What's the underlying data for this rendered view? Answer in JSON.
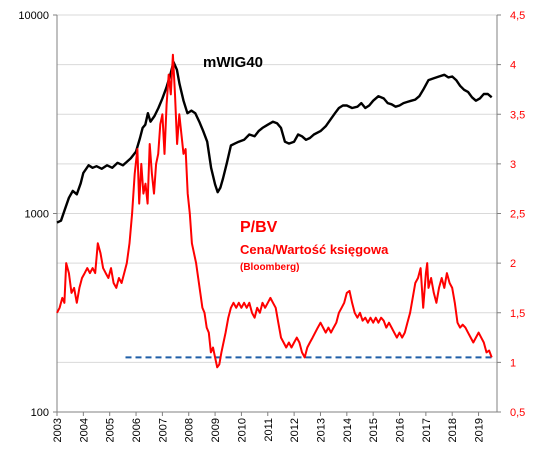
{
  "chart_data": {
    "type": "line",
    "x_ticks": [
      "2003",
      "2004",
      "2005",
      "2006",
      "2007",
      "2008",
      "2009",
      "2010",
      "2011",
      "2012",
      "2013",
      "2014",
      "2015",
      "2016",
      "2017",
      "2018",
      "2019"
    ],
    "y_left": {
      "scale": "log",
      "range": [
        100,
        10000
      ],
      "ticks": [
        "10000",
        "1000",
        "100"
      ]
    },
    "y_right": {
      "range": [
        0.5,
        4.5
      ],
      "ticks": [
        "4,5",
        "4",
        "3,5",
        "3",
        "2,5",
        "2",
        "1,5",
        "1",
        "0,5"
      ]
    },
    "annotations": {
      "mwig": "mWIG40",
      "pbv": "P/BV",
      "cena": "Cena/Wartość księgowa",
      "bloomberg": "(Bloomberg)"
    },
    "colors": {
      "mwig": "#000000",
      "pbv": "#ff0000",
      "reference": "#1f5fa8",
      "grid": "#d9d9d9"
    },
    "reference_line": {
      "value": 1.05,
      "x_start": 2005.6,
      "x_end": 2019.5,
      "style": "dashed"
    },
    "series": [
      {
        "name": "mWIG40",
        "axis": "left",
        "points": [
          [
            2003.0,
            900
          ],
          [
            2003.15,
            920
          ],
          [
            2003.3,
            1050
          ],
          [
            2003.45,
            1200
          ],
          [
            2003.6,
            1300
          ],
          [
            2003.75,
            1250
          ],
          [
            2003.9,
            1420
          ],
          [
            2004.0,
            1600
          ],
          [
            2004.2,
            1750
          ],
          [
            2004.35,
            1700
          ],
          [
            2004.5,
            1730
          ],
          [
            2004.7,
            1680
          ],
          [
            2004.9,
            1750
          ],
          [
            2005.1,
            1700
          ],
          [
            2005.3,
            1800
          ],
          [
            2005.5,
            1750
          ],
          [
            2005.65,
            1820
          ],
          [
            2005.8,
            1900
          ],
          [
            2006.0,
            2050
          ],
          [
            2006.15,
            2400
          ],
          [
            2006.25,
            2700
          ],
          [
            2006.35,
            2800
          ],
          [
            2006.45,
            3200
          ],
          [
            2006.55,
            2900
          ],
          [
            2006.7,
            3100
          ],
          [
            2006.85,
            3400
          ],
          [
            2007.0,
            3800
          ],
          [
            2007.15,
            4300
          ],
          [
            2007.3,
            5000
          ],
          [
            2007.42,
            5800
          ],
          [
            2007.55,
            5300
          ],
          [
            2007.65,
            4500
          ],
          [
            2007.8,
            3700
          ],
          [
            2007.95,
            3200
          ],
          [
            2008.1,
            3300
          ],
          [
            2008.25,
            3200
          ],
          [
            2008.4,
            2900
          ],
          [
            2008.55,
            2600
          ],
          [
            2008.7,
            2300
          ],
          [
            2008.85,
            1700
          ],
          [
            2009.0,
            1400
          ],
          [
            2009.1,
            1280
          ],
          [
            2009.2,
            1350
          ],
          [
            2009.3,
            1500
          ],
          [
            2009.45,
            1800
          ],
          [
            2009.6,
            2200
          ],
          [
            2009.75,
            2250
          ],
          [
            2009.9,
            2300
          ],
          [
            2010.1,
            2350
          ],
          [
            2010.3,
            2500
          ],
          [
            2010.5,
            2450
          ],
          [
            2010.65,
            2600
          ],
          [
            2010.8,
            2700
          ],
          [
            2011.0,
            2800
          ],
          [
            2011.2,
            2900
          ],
          [
            2011.35,
            2850
          ],
          [
            2011.5,
            2700
          ],
          [
            2011.65,
            2300
          ],
          [
            2011.8,
            2250
          ],
          [
            2012.0,
            2300
          ],
          [
            2012.15,
            2500
          ],
          [
            2012.3,
            2450
          ],
          [
            2012.45,
            2350
          ],
          [
            2012.6,
            2400
          ],
          [
            2012.75,
            2500
          ],
          [
            2013.0,
            2600
          ],
          [
            2013.2,
            2750
          ],
          [
            2013.4,
            3000
          ],
          [
            2013.55,
            3200
          ],
          [
            2013.7,
            3400
          ],
          [
            2013.85,
            3500
          ],
          [
            2014.0,
            3500
          ],
          [
            2014.2,
            3400
          ],
          [
            2014.4,
            3450
          ],
          [
            2014.55,
            3600
          ],
          [
            2014.7,
            3400
          ],
          [
            2014.85,
            3500
          ],
          [
            2015.0,
            3700
          ],
          [
            2015.2,
            3900
          ],
          [
            2015.4,
            3800
          ],
          [
            2015.55,
            3600
          ],
          [
            2015.7,
            3550
          ],
          [
            2015.85,
            3450
          ],
          [
            2016.0,
            3500
          ],
          [
            2016.15,
            3600
          ],
          [
            2016.3,
            3650
          ],
          [
            2016.45,
            3700
          ],
          [
            2016.6,
            3750
          ],
          [
            2016.75,
            3900
          ],
          [
            2016.9,
            4200
          ],
          [
            2017.1,
            4700
          ],
          [
            2017.3,
            4800
          ],
          [
            2017.5,
            4900
          ],
          [
            2017.7,
            5000
          ],
          [
            2017.85,
            4850
          ],
          [
            2018.0,
            4900
          ],
          [
            2018.15,
            4700
          ],
          [
            2018.3,
            4400
          ],
          [
            2018.45,
            4200
          ],
          [
            2018.6,
            4100
          ],
          [
            2018.75,
            3850
          ],
          [
            2018.9,
            3700
          ],
          [
            2019.05,
            3800
          ],
          [
            2019.2,
            4000
          ],
          [
            2019.35,
            4000
          ],
          [
            2019.5,
            3850
          ]
        ]
      },
      {
        "name": "P/BV",
        "axis": "right",
        "points": [
          [
            2003.0,
            1.5
          ],
          [
            2003.1,
            1.55
          ],
          [
            2003.2,
            1.65
          ],
          [
            2003.28,
            1.6
          ],
          [
            2003.35,
            2.0
          ],
          [
            2003.45,
            1.9
          ],
          [
            2003.55,
            1.7
          ],
          [
            2003.65,
            1.75
          ],
          [
            2003.75,
            1.6
          ],
          [
            2003.85,
            1.75
          ],
          [
            2003.95,
            1.85
          ],
          [
            2004.05,
            1.9
          ],
          [
            2004.15,
            1.95
          ],
          [
            2004.25,
            1.9
          ],
          [
            2004.35,
            1.95
          ],
          [
            2004.45,
            1.9
          ],
          [
            2004.55,
            2.2
          ],
          [
            2004.65,
            2.1
          ],
          [
            2004.75,
            1.95
          ],
          [
            2004.85,
            1.9
          ],
          [
            2004.95,
            1.85
          ],
          [
            2005.05,
            1.95
          ],
          [
            2005.15,
            1.8
          ],
          [
            2005.25,
            1.75
          ],
          [
            2005.35,
            1.85
          ],
          [
            2005.45,
            1.8
          ],
          [
            2005.55,
            1.9
          ],
          [
            2005.65,
            2.0
          ],
          [
            2005.75,
            2.2
          ],
          [
            2005.85,
            2.5
          ],
          [
            2005.95,
            2.9
          ],
          [
            2006.05,
            3.15
          ],
          [
            2006.12,
            2.6
          ],
          [
            2006.2,
            3.0
          ],
          [
            2006.28,
            2.7
          ],
          [
            2006.36,
            2.8
          ],
          [
            2006.44,
            2.6
          ],
          [
            2006.52,
            3.2
          ],
          [
            2006.6,
            2.9
          ],
          [
            2006.68,
            2.7
          ],
          [
            2006.76,
            3.0
          ],
          [
            2006.84,
            3.1
          ],
          [
            2006.92,
            3.4
          ],
          [
            2007.0,
            3.5
          ],
          [
            2007.08,
            3.1
          ],
          [
            2007.16,
            3.6
          ],
          [
            2007.24,
            3.9
          ],
          [
            2007.32,
            3.7
          ],
          [
            2007.4,
            4.1
          ],
          [
            2007.48,
            3.7
          ],
          [
            2007.56,
            3.2
          ],
          [
            2007.64,
            3.5
          ],
          [
            2007.72,
            3.3
          ],
          [
            2007.8,
            3.1
          ],
          [
            2007.88,
            3.15
          ],
          [
            2007.96,
            2.7
          ],
          [
            2008.04,
            2.5
          ],
          [
            2008.12,
            2.2
          ],
          [
            2008.2,
            2.1
          ],
          [
            2008.28,
            2.0
          ],
          [
            2008.36,
            1.85
          ],
          [
            2008.44,
            1.7
          ],
          [
            2008.52,
            1.55
          ],
          [
            2008.6,
            1.5
          ],
          [
            2008.68,
            1.35
          ],
          [
            2008.76,
            1.3
          ],
          [
            2008.84,
            1.1
          ],
          [
            2008.92,
            1.15
          ],
          [
            2009.0,
            1.05
          ],
          [
            2009.08,
            0.95
          ],
          [
            2009.16,
            0.98
          ],
          [
            2009.24,
            1.1
          ],
          [
            2009.32,
            1.2
          ],
          [
            2009.4,
            1.3
          ],
          [
            2009.5,
            1.45
          ],
          [
            2009.6,
            1.55
          ],
          [
            2009.7,
            1.6
          ],
          [
            2009.8,
            1.55
          ],
          [
            2009.9,
            1.6
          ],
          [
            2010.0,
            1.55
          ],
          [
            2010.1,
            1.6
          ],
          [
            2010.2,
            1.55
          ],
          [
            2010.3,
            1.6
          ],
          [
            2010.4,
            1.5
          ],
          [
            2010.5,
            1.45
          ],
          [
            2010.6,
            1.55
          ],
          [
            2010.7,
            1.5
          ],
          [
            2010.8,
            1.6
          ],
          [
            2010.9,
            1.55
          ],
          [
            2011.0,
            1.6
          ],
          [
            2011.1,
            1.65
          ],
          [
            2011.2,
            1.6
          ],
          [
            2011.3,
            1.55
          ],
          [
            2011.4,
            1.4
          ],
          [
            2011.5,
            1.25
          ],
          [
            2011.6,
            1.2
          ],
          [
            2011.7,
            1.15
          ],
          [
            2011.8,
            1.2
          ],
          [
            2011.9,
            1.15
          ],
          [
            2012.0,
            1.2
          ],
          [
            2012.1,
            1.25
          ],
          [
            2012.2,
            1.2
          ],
          [
            2012.3,
            1.1
          ],
          [
            2012.4,
            1.05
          ],
          [
            2012.5,
            1.15
          ],
          [
            2012.6,
            1.2
          ],
          [
            2012.7,
            1.25
          ],
          [
            2012.8,
            1.3
          ],
          [
            2012.9,
            1.35
          ],
          [
            2013.0,
            1.4
          ],
          [
            2013.1,
            1.35
          ],
          [
            2013.2,
            1.3
          ],
          [
            2013.3,
            1.35
          ],
          [
            2013.4,
            1.3
          ],
          [
            2013.5,
            1.35
          ],
          [
            2013.6,
            1.4
          ],
          [
            2013.7,
            1.5
          ],
          [
            2013.8,
            1.55
          ],
          [
            2013.9,
            1.6
          ],
          [
            2014.0,
            1.7
          ],
          [
            2014.1,
            1.72
          ],
          [
            2014.2,
            1.6
          ],
          [
            2014.3,
            1.5
          ],
          [
            2014.4,
            1.45
          ],
          [
            2014.5,
            1.5
          ],
          [
            2014.6,
            1.42
          ],
          [
            2014.7,
            1.45
          ],
          [
            2014.8,
            1.4
          ],
          [
            2014.9,
            1.45
          ],
          [
            2015.0,
            1.4
          ],
          [
            2015.1,
            1.45
          ],
          [
            2015.2,
            1.4
          ],
          [
            2015.3,
            1.45
          ],
          [
            2015.4,
            1.42
          ],
          [
            2015.5,
            1.35
          ],
          [
            2015.6,
            1.4
          ],
          [
            2015.7,
            1.35
          ],
          [
            2015.8,
            1.3
          ],
          [
            2015.9,
            1.25
          ],
          [
            2016.0,
            1.3
          ],
          [
            2016.1,
            1.25
          ],
          [
            2016.2,
            1.3
          ],
          [
            2016.3,
            1.4
          ],
          [
            2016.4,
            1.5
          ],
          [
            2016.5,
            1.65
          ],
          [
            2016.6,
            1.8
          ],
          [
            2016.7,
            1.85
          ],
          [
            2016.8,
            1.95
          ],
          [
            2016.9,
            1.55
          ],
          [
            2017.0,
            1.9
          ],
          [
            2017.05,
            2.0
          ],
          [
            2017.1,
            1.75
          ],
          [
            2017.2,
            1.85
          ],
          [
            2017.3,
            1.7
          ],
          [
            2017.4,
            1.6
          ],
          [
            2017.5,
            1.75
          ],
          [
            2017.6,
            1.85
          ],
          [
            2017.7,
            1.75
          ],
          [
            2017.8,
            1.9
          ],
          [
            2017.9,
            1.8
          ],
          [
            2018.0,
            1.75
          ],
          [
            2018.1,
            1.6
          ],
          [
            2018.2,
            1.4
          ],
          [
            2018.3,
            1.35
          ],
          [
            2018.4,
            1.38
          ],
          [
            2018.5,
            1.35
          ],
          [
            2018.6,
            1.3
          ],
          [
            2018.7,
            1.25
          ],
          [
            2018.8,
            1.2
          ],
          [
            2018.9,
            1.25
          ],
          [
            2019.0,
            1.3
          ],
          [
            2019.1,
            1.25
          ],
          [
            2019.2,
            1.2
          ],
          [
            2019.3,
            1.1
          ],
          [
            2019.4,
            1.12
          ],
          [
            2019.5,
            1.05
          ]
        ]
      }
    ]
  }
}
